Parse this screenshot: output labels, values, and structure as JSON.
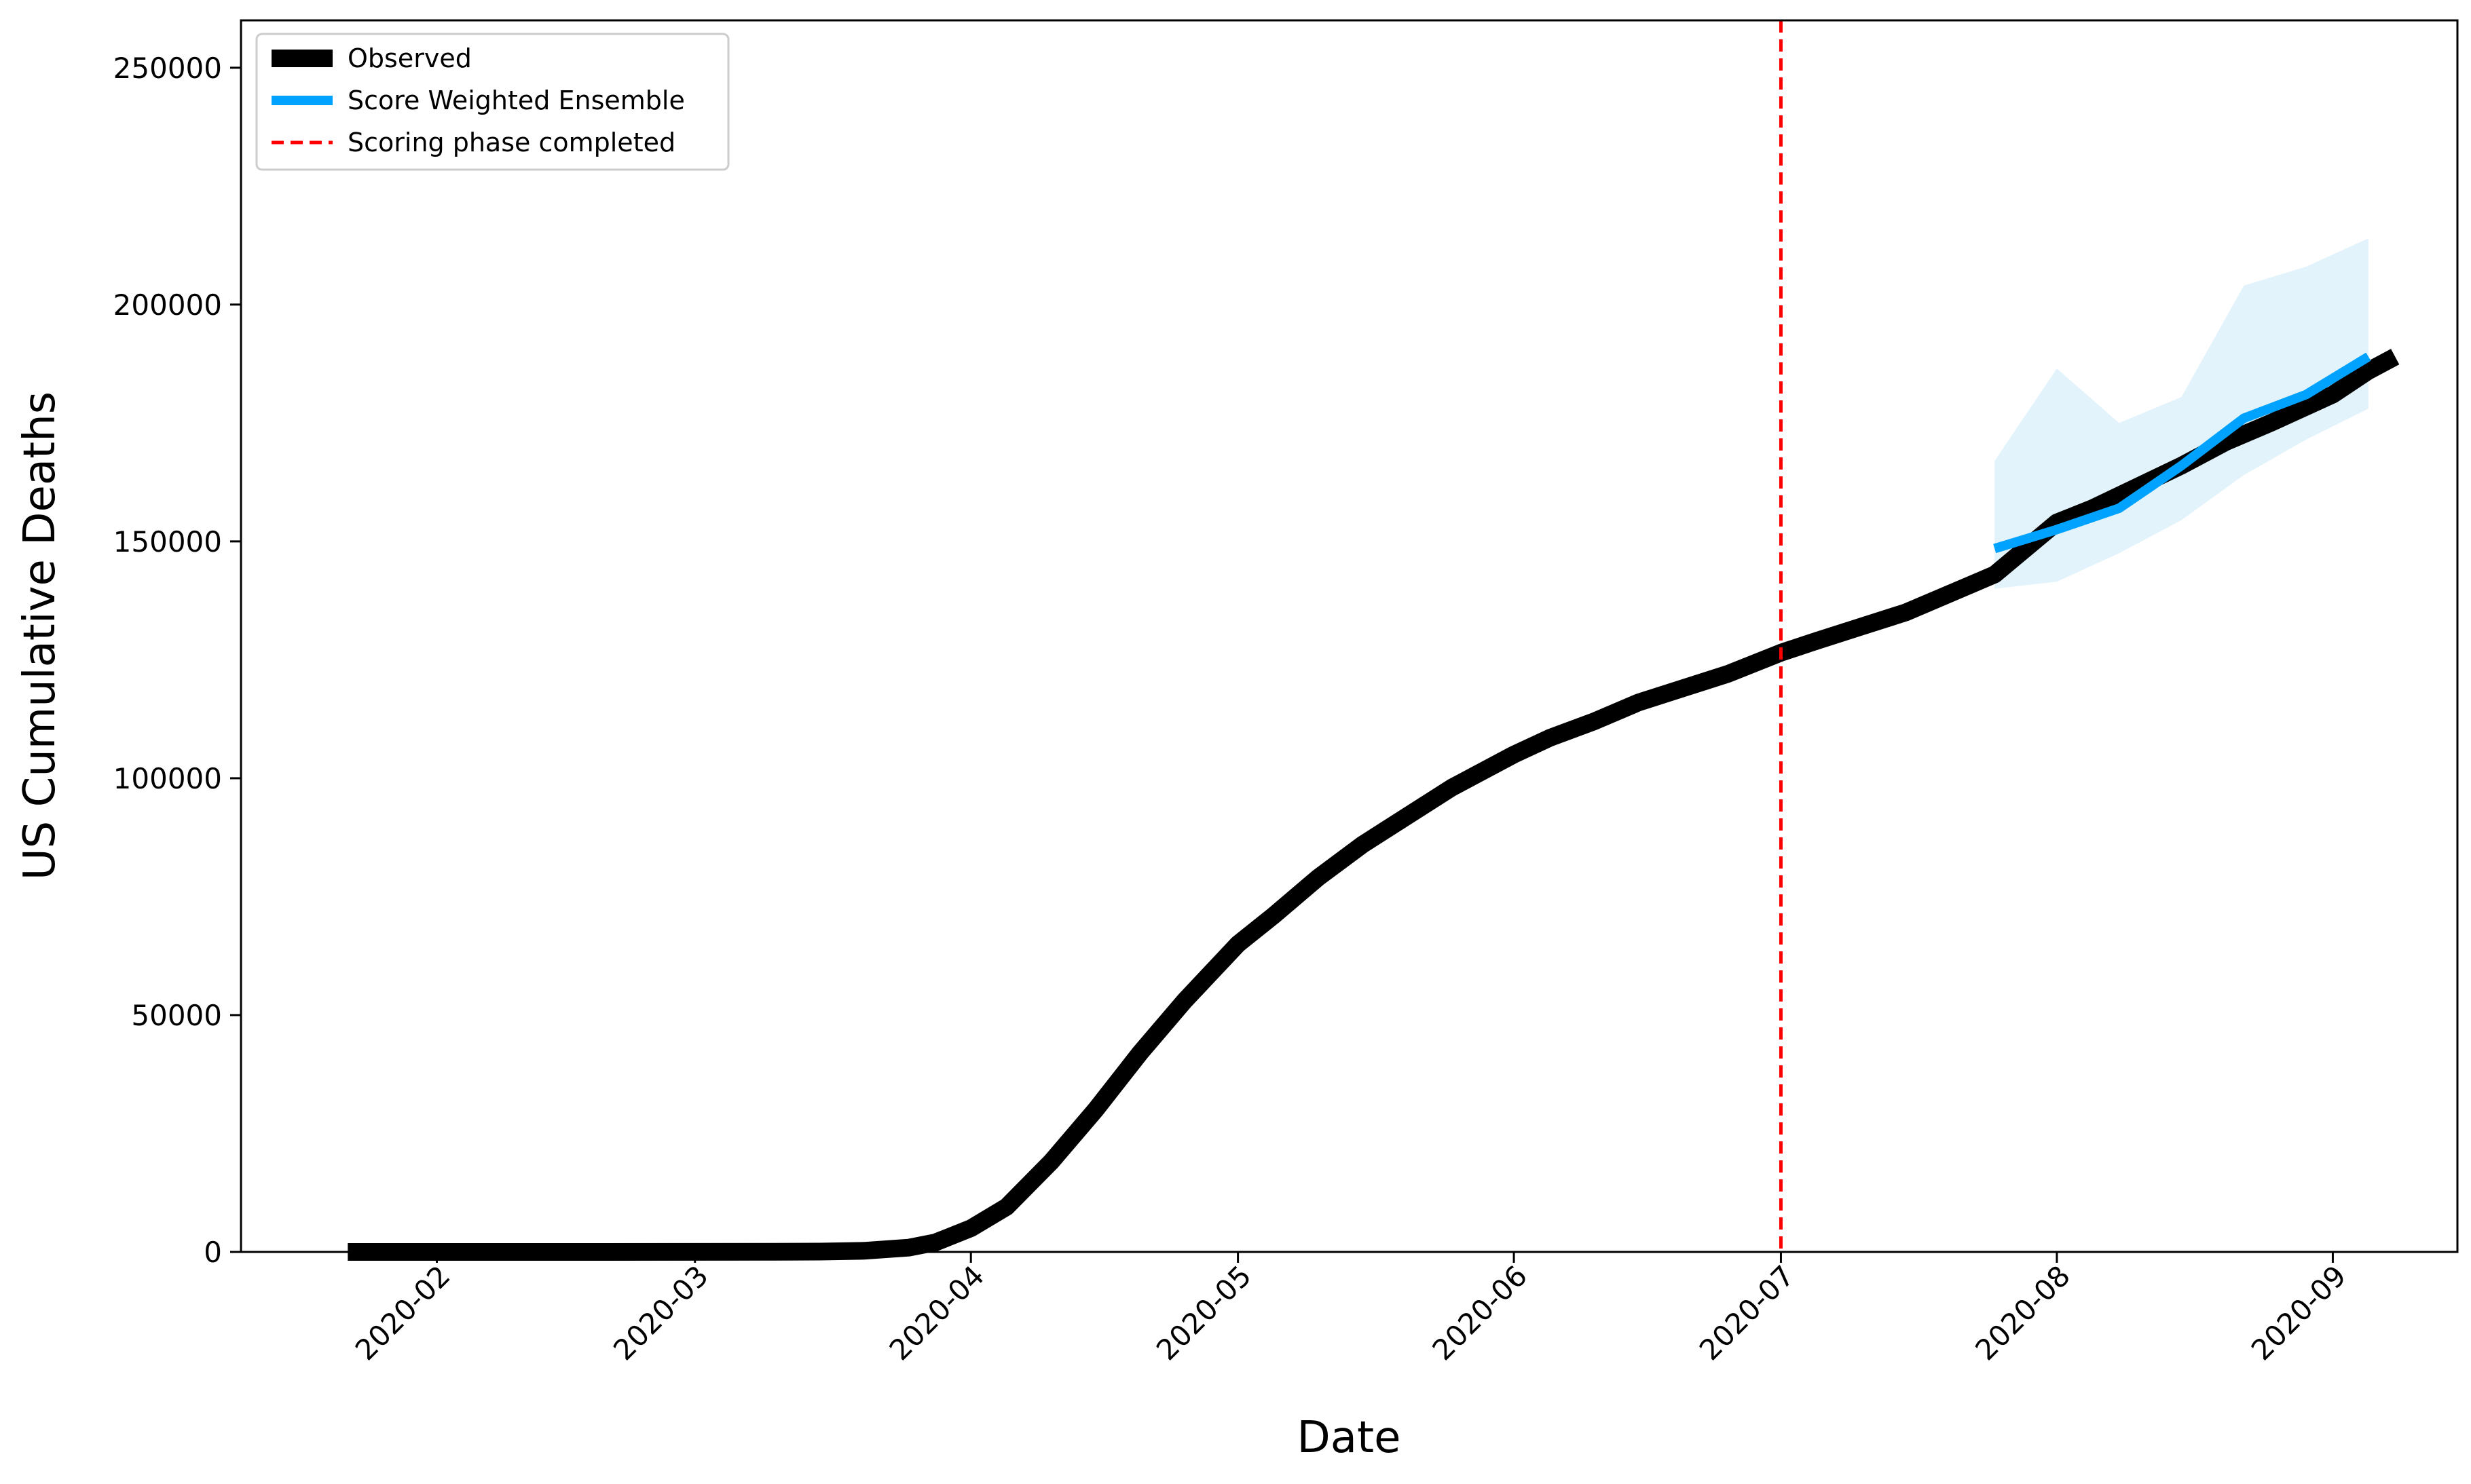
{
  "chart_data": {
    "type": "line",
    "xlabel": "Date",
    "ylabel": "US Cumulative Deaths",
    "x_range": [
      "2020-01-10",
      "2020-09-15"
    ],
    "ylim": [
      0,
      260000
    ],
    "x_ticks": [
      "2020-02",
      "2020-03",
      "2020-04",
      "2020-05",
      "2020-06",
      "2020-07",
      "2020-08",
      "2020-09"
    ],
    "x_tick_dates": [
      "2020-02-01",
      "2020-03-01",
      "2020-04-01",
      "2020-05-01",
      "2020-06-01",
      "2020-07-01",
      "2020-08-01",
      "2020-09-01"
    ],
    "y_ticks": [
      0,
      50000,
      100000,
      150000,
      200000,
      250000
    ],
    "y_tick_labels": [
      "0",
      "50000",
      "100000",
      "150000",
      "200000",
      "250000"
    ],
    "grid": false,
    "legend_placement": "top-left",
    "legend": {
      "observed": "Observed",
      "ensemble": "Score Weighted Ensemble",
      "vline": "Scoring phase completed"
    },
    "colors": {
      "observed": "#000000",
      "ensemble": "#00a2ff",
      "band": "#cce9f9",
      "vline": "#ff0000"
    },
    "series": [
      {
        "name": "Observed",
        "x": [
          "2020-01-22",
          "2020-02-15",
          "2020-03-10",
          "2020-03-15",
          "2020-03-20",
          "2020-03-25",
          "2020-03-28",
          "2020-04-01",
          "2020-04-05",
          "2020-04-10",
          "2020-04-15",
          "2020-04-20",
          "2020-04-25",
          "2020-05-01",
          "2020-05-05",
          "2020-05-10",
          "2020-05-15",
          "2020-05-20",
          "2020-05-25",
          "2020-06-01",
          "2020-06-05",
          "2020-06-10",
          "2020-06-15",
          "2020-06-20",
          "2020-06-25",
          "2020-07-01",
          "2020-07-05",
          "2020-07-10",
          "2020-07-15",
          "2020-07-20",
          "2020-07-25",
          "2020-08-01",
          "2020-08-05",
          "2020-08-10",
          "2020-08-15",
          "2020-08-20",
          "2020-08-25",
          "2020-09-01",
          "2020-09-05",
          "2020-09-08"
        ],
        "values": [
          0,
          0,
          30,
          70,
          250,
          900,
          2000,
          5000,
          9500,
          19000,
          30000,
          42000,
          53000,
          65000,
          71000,
          79000,
          86000,
          92000,
          98000,
          105000,
          108500,
          112000,
          116000,
          119000,
          122000,
          126500,
          129000,
          132000,
          135000,
          139000,
          143000,
          154000,
          157000,
          161500,
          166000,
          171000,
          175000,
          181000,
          186000,
          189000
        ]
      },
      {
        "name": "Score Weighted Ensemble",
        "x": [
          "2020-07-25",
          "2020-08-01",
          "2020-08-08",
          "2020-08-15",
          "2020-08-22",
          "2020-08-29",
          "2020-09-05"
        ],
        "values": [
          148500,
          152500,
          157000,
          166000,
          176000,
          181000,
          189000
        ],
        "lower": [
          140000,
          141500,
          147500,
          154500,
          164000,
          171500,
          178000
        ],
        "upper": [
          167000,
          186500,
          175000,
          180500,
          204000,
          208000,
          214000
        ]
      }
    ],
    "vline_date": "2020-07-01"
  }
}
